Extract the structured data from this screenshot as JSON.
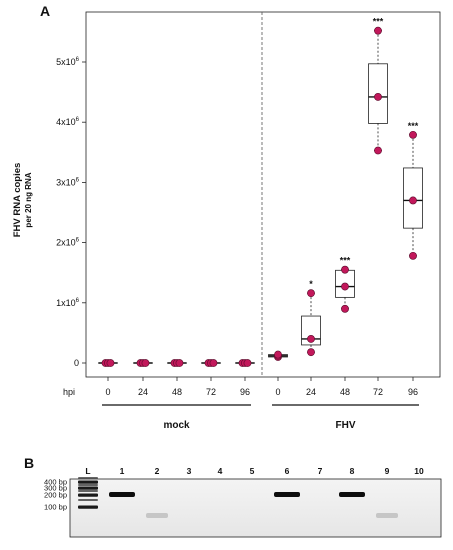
{
  "panel_a_label": "A",
  "panel_b_label": "B",
  "chart_data": {
    "type": "boxplot",
    "ylabel_line1": "FHV RNA copies",
    "ylabel_line2": "per 20 ng RNA",
    "ylim": [
      -10000,
      5650000
    ],
    "y_ticks": [
      {
        "value": 0,
        "base": "0",
        "exp": ""
      },
      {
        "value": 1000000,
        "base": "1x10",
        "exp": "6"
      },
      {
        "value": 2000000,
        "base": "2x10",
        "exp": "6"
      },
      {
        "value": 3000000,
        "base": "3x10",
        "exp": "6"
      },
      {
        "value": 4000000,
        "base": "4x10",
        "exp": "6"
      },
      {
        "value": 5000000,
        "base": "5x10",
        "exp": "6"
      }
    ],
    "x_axis_prefix": "hpi",
    "groups": [
      {
        "name": "mock",
        "timepoints": [
          {
            "hpi": "0",
            "points": [
              0,
              0,
              0
            ],
            "q1": 0,
            "median": 0,
            "q3": 0,
            "whisker_low": 0,
            "whisker_high": 0,
            "sig": ""
          },
          {
            "hpi": "24",
            "points": [
              0,
              0,
              0
            ],
            "q1": 0,
            "median": 0,
            "q3": 0,
            "whisker_low": 0,
            "whisker_high": 0,
            "sig": ""
          },
          {
            "hpi": "48",
            "points": [
              0,
              0,
              0
            ],
            "q1": 0,
            "median": 0,
            "q3": 0,
            "whisker_low": 0,
            "whisker_high": 0,
            "sig": ""
          },
          {
            "hpi": "72",
            "points": [
              0,
              0,
              0
            ],
            "q1": 0,
            "median": 0,
            "q3": 0,
            "whisker_low": 0,
            "whisker_high": 0,
            "sig": ""
          },
          {
            "hpi": "96",
            "points": [
              0,
              0,
              0
            ],
            "q1": 0,
            "median": 0,
            "q3": 0,
            "whisker_low": 0,
            "whisker_high": 0,
            "sig": ""
          }
        ]
      },
      {
        "name": "FHV",
        "timepoints": [
          {
            "hpi": "0",
            "points": [
              100000,
              120000,
              140000
            ],
            "q1": 100000,
            "median": 120000,
            "q3": 140000,
            "whisker_low": 100000,
            "whisker_high": 140000,
            "sig": ""
          },
          {
            "hpi": "24",
            "points": [
              180000,
              400000,
              1160000
            ],
            "q1": 300000,
            "median": 400000,
            "q3": 780000,
            "whisker_low": 180000,
            "whisker_high": 1160000,
            "sig": "*"
          },
          {
            "hpi": "48",
            "points": [
              900000,
              1270000,
              1550000
            ],
            "q1": 1090000,
            "median": 1270000,
            "q3": 1540000,
            "whisker_low": 900000,
            "whisker_high": 1550000,
            "sig": "***"
          },
          {
            "hpi": "72",
            "points": [
              3530000,
              4420000,
              5520000
            ],
            "q1": 3980000,
            "median": 4420000,
            "q3": 4970000,
            "whisker_low": 3530000,
            "whisker_high": 5520000,
            "sig": "***"
          },
          {
            "hpi": "96",
            "points": [
              1780000,
              2700000,
              3790000
            ],
            "q1": 2240000,
            "median": 2700000,
            "q3": 3240000,
            "whisker_low": 1780000,
            "whisker_high": 3790000,
            "sig": "***"
          }
        ]
      }
    ],
    "colors": {
      "point": "#c2185b",
      "point_stroke": "#5a0a2a",
      "box": "#222222",
      "divider": "#555555"
    }
  },
  "gel": {
    "ladder_label": "L",
    "ladder_sizes": [
      "400 bp",
      "300 bp",
      "200 bp",
      "100 bp"
    ],
    "lanes": [
      {
        "label": "1",
        "band": "strong"
      },
      {
        "label": "2",
        "band": "faint"
      },
      {
        "label": "3",
        "band": "none"
      },
      {
        "label": "4",
        "band": "none"
      },
      {
        "label": "5",
        "band": "none"
      },
      {
        "label": "6",
        "band": "strong"
      },
      {
        "label": "7",
        "band": "none"
      },
      {
        "label": "8",
        "band": "strong"
      },
      {
        "label": "9",
        "band": "faint"
      },
      {
        "label": "10",
        "band": "none"
      }
    ]
  }
}
